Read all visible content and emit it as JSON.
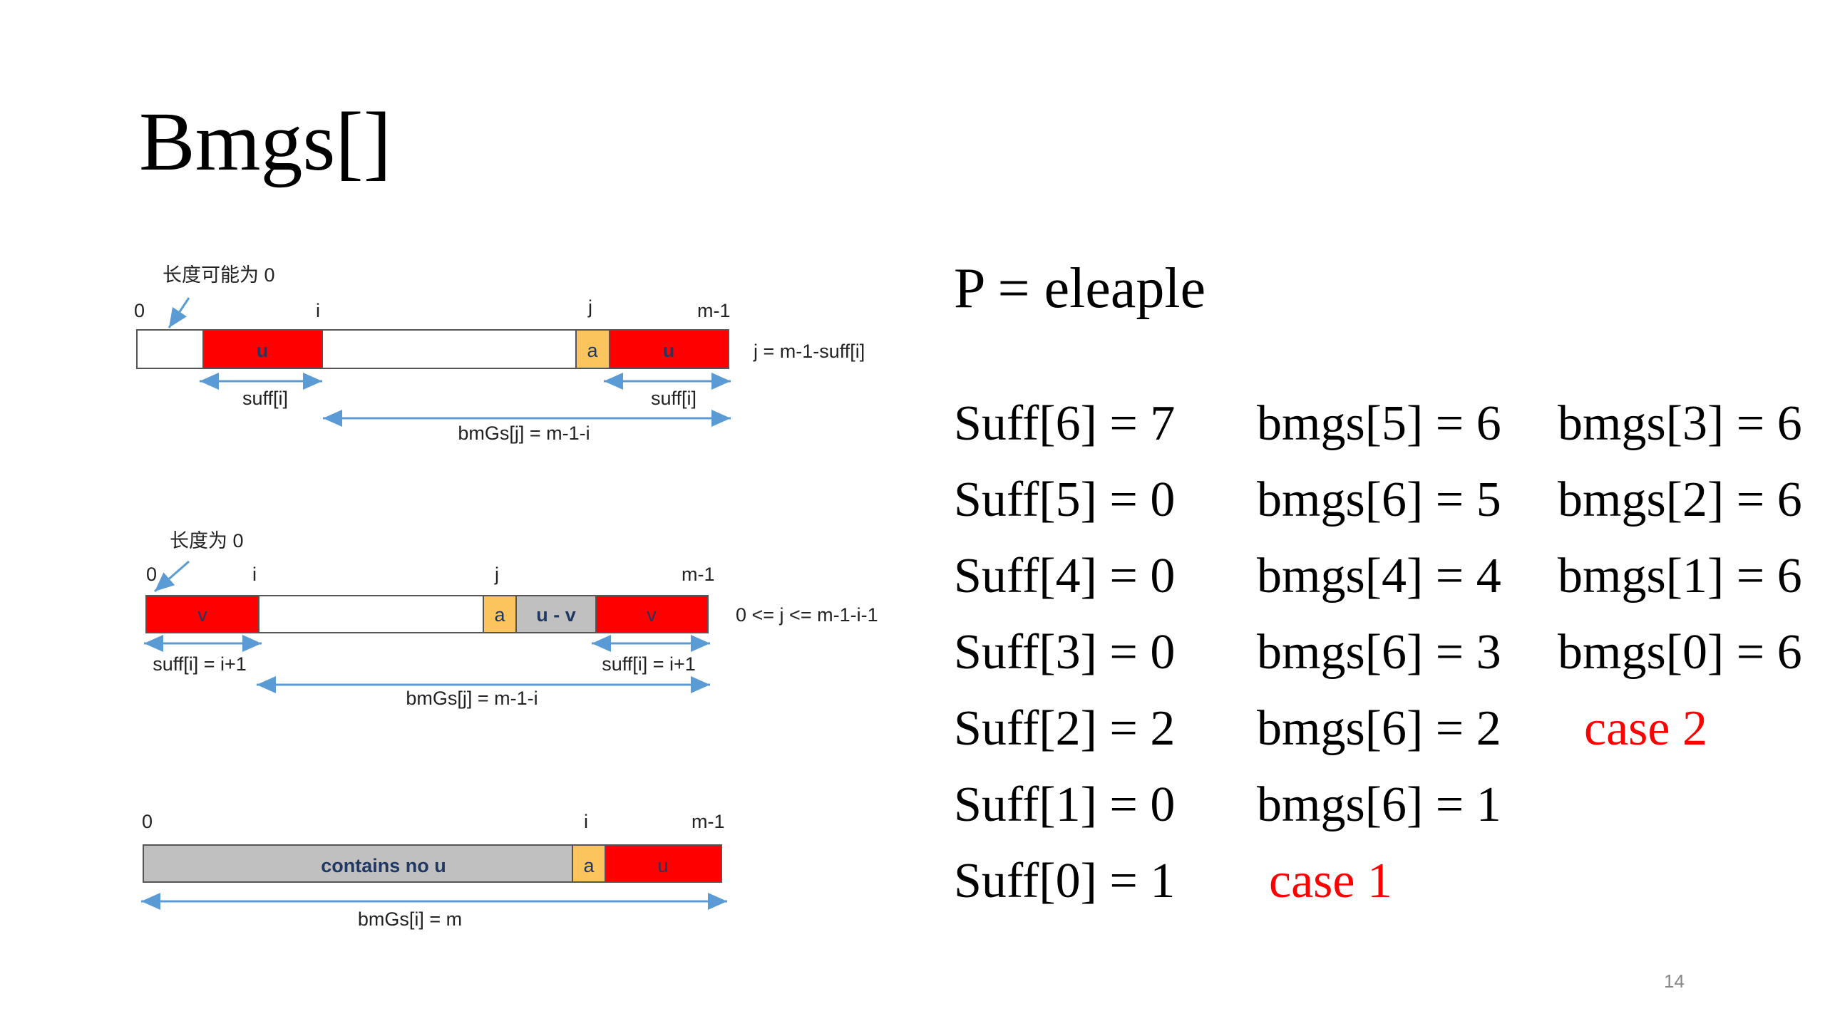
{
  "title": "Bmgs[]",
  "pattern_line": "P = eleaple",
  "colors": {
    "red_block": "#ff0000",
    "yellow_block": "#fcc45c",
    "gray_block": "#c0c0c0",
    "arrow": "#5b9bd5",
    "case_text": "#ff0000",
    "block_label": "#203864"
  },
  "diagram1": {
    "note": "长度可能为 0",
    "label_0": "0",
    "label_i": "i",
    "label_j": "j",
    "label_m1": "m-1",
    "block_u_left": "u",
    "block_a": "a",
    "block_u_right": "u",
    "formula_right": "j = m-1-suff[i]",
    "arrow_suff_left": "suff[i]",
    "arrow_suff_right": "suff[i]",
    "arrow_bmgs": "bmGs[j] = m-1-i"
  },
  "diagram2": {
    "note": "长度为 0",
    "label_0": "0",
    "label_i": "i",
    "label_j": "j",
    "label_m1": "m-1",
    "block_v_left": "v",
    "block_a": "a",
    "block_uv": "u - v",
    "block_v_right": "v",
    "formula_right": "0 <= j <= m-1-i-1",
    "arrow_suff_left": "suff[i] = i+1",
    "arrow_suff_right": "suff[i] = i+1",
    "arrow_bmgs": "bmGs[j] = m-1-i"
  },
  "diagram3": {
    "label_0": "0",
    "label_i": "i",
    "label_m1": "m-1",
    "block_gray": "contains no u",
    "block_a": "a",
    "block_u": "u",
    "arrow_bmgs": "bmGs[i] = m"
  },
  "suff_column": [
    "Suff[6] = 7",
    "Suff[5] = 0",
    "Suff[4] = 0",
    "Suff[3] = 0",
    "Suff[2] = 2",
    "Suff[1] = 0",
    "Suff[0] = 1"
  ],
  "bmgs_column1": [
    "bmgs[5] = 6",
    "bmgs[6] = 5",
    "bmgs[4] = 4",
    "bmgs[6] = 3",
    "bmgs[6] = 2",
    "bmgs[6] = 1"
  ],
  "bmgs_column2": [
    "bmgs[3] = 6",
    "bmgs[2] = 6",
    "bmgs[1] = 6",
    "bmgs[0] = 6"
  ],
  "case1": "case 1",
  "case2": "case 2",
  "page_number": "14"
}
